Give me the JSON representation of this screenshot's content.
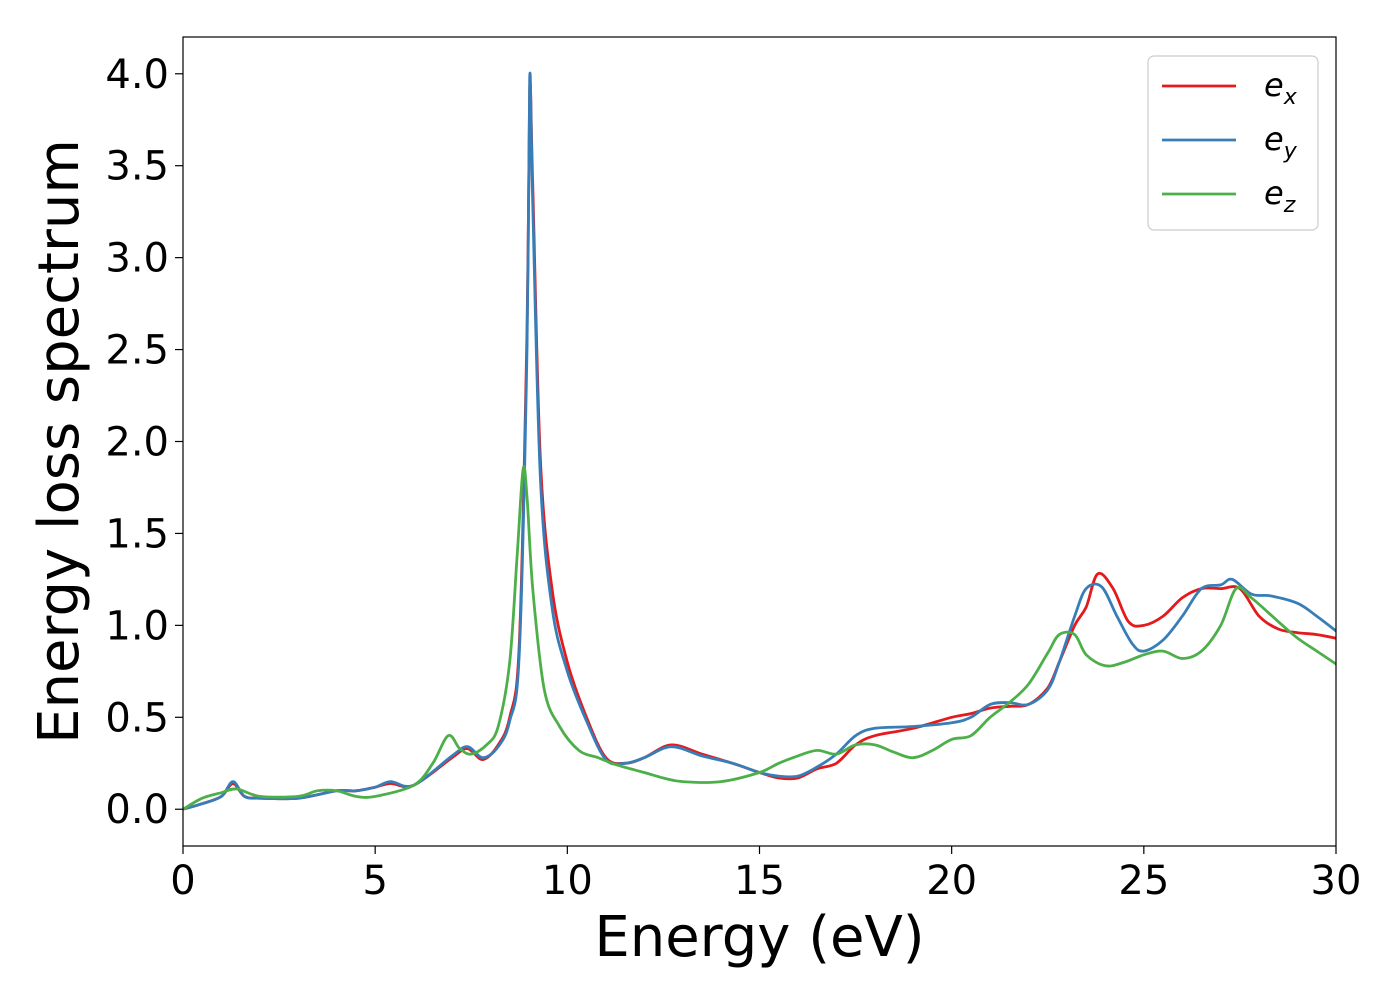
{
  "chart_data": {
    "type": "line",
    "title": "",
    "xlabel": "Energy (eV)",
    "ylabel": "Energy loss spectrum",
    "xlim": [
      0,
      30
    ],
    "ylim": [
      -0.2,
      4.2
    ],
    "xticks": [
      0,
      5,
      10,
      15,
      20,
      25,
      30
    ],
    "yticks": [
      0.0,
      0.5,
      1.0,
      1.5,
      2.0,
      2.5,
      3.0,
      3.5,
      4.0
    ],
    "grid": false,
    "legend_position": "top-right",
    "series": [
      {
        "name": "e_x",
        "label_main": "e",
        "label_sub": "x",
        "color": "#e41a1c",
        "x": [
          0,
          0.5,
          1.0,
          1.3,
          1.6,
          2.0,
          3.0,
          4.0,
          4.5,
          5.0,
          5.4,
          6.0,
          7.0,
          7.4,
          7.8,
          8.2,
          8.5,
          8.75,
          8.95,
          9.02,
          9.1,
          9.3,
          9.6,
          10.0,
          10.5,
          11.0,
          11.5,
          12.0,
          12.7,
          13.5,
          14.3,
          15.0,
          15.5,
          16.0,
          16.5,
          17.0,
          17.5,
          18.0,
          19.0,
          20.0,
          20.5,
          21.0,
          21.5,
          22.0,
          22.5,
          22.8,
          23.2,
          23.5,
          23.8,
          24.2,
          24.6,
          25.0,
          25.5,
          26.0,
          26.5,
          27.0,
          27.5,
          28.0,
          28.5,
          29.0,
          29.5,
          30.0
        ],
        "y": [
          0.0,
          0.03,
          0.07,
          0.14,
          0.07,
          0.06,
          0.06,
          0.1,
          0.1,
          0.12,
          0.14,
          0.13,
          0.28,
          0.33,
          0.27,
          0.35,
          0.5,
          0.9,
          2.6,
          3.92,
          3.4,
          1.9,
          1.2,
          0.8,
          0.5,
          0.28,
          0.25,
          0.28,
          0.35,
          0.3,
          0.25,
          0.2,
          0.17,
          0.17,
          0.22,
          0.25,
          0.35,
          0.4,
          0.44,
          0.5,
          0.52,
          0.55,
          0.56,
          0.57,
          0.66,
          0.8,
          1.0,
          1.1,
          1.28,
          1.2,
          1.02,
          1.0,
          1.05,
          1.15,
          1.2,
          1.2,
          1.2,
          1.05,
          0.98,
          0.96,
          0.95,
          0.93
        ]
      },
      {
        "name": "e_y",
        "label_main": "e",
        "label_sub": "y",
        "color": "#377eb8",
        "x": [
          0,
          0.5,
          1.0,
          1.3,
          1.6,
          2.0,
          3.0,
          4.0,
          4.5,
          5.0,
          5.4,
          6.0,
          7.0,
          7.4,
          7.8,
          8.2,
          8.5,
          8.75,
          8.95,
          9.02,
          9.1,
          9.3,
          9.6,
          10.0,
          10.5,
          11.0,
          11.5,
          12.0,
          12.7,
          13.5,
          14.3,
          15.0,
          15.5,
          16.0,
          16.5,
          17.0,
          17.5,
          18.0,
          19.0,
          20.0,
          20.5,
          21.0,
          21.5,
          22.0,
          22.5,
          22.8,
          23.2,
          23.5,
          23.9,
          24.3,
          24.7,
          25.0,
          25.5,
          26.0,
          26.5,
          27.0,
          27.3,
          27.8,
          28.3,
          29.0,
          29.5,
          30.0
        ],
        "y": [
          0.0,
          0.03,
          0.07,
          0.15,
          0.07,
          0.06,
          0.06,
          0.1,
          0.1,
          0.12,
          0.15,
          0.13,
          0.29,
          0.34,
          0.28,
          0.34,
          0.48,
          0.85,
          2.5,
          3.98,
          3.3,
          1.8,
          1.1,
          0.75,
          0.48,
          0.27,
          0.25,
          0.28,
          0.34,
          0.29,
          0.25,
          0.2,
          0.18,
          0.18,
          0.23,
          0.3,
          0.4,
          0.44,
          0.45,
          0.47,
          0.5,
          0.57,
          0.58,
          0.57,
          0.65,
          0.8,
          1.05,
          1.2,
          1.21,
          1.05,
          0.9,
          0.86,
          0.92,
          1.05,
          1.2,
          1.22,
          1.25,
          1.17,
          1.16,
          1.12,
          1.05,
          0.97
        ]
      },
      {
        "name": "e_z",
        "label_main": "e",
        "label_sub": "z",
        "color": "#4daf4a",
        "x": [
          0,
          0.5,
          1.0,
          1.4,
          2.0,
          3.0,
          3.5,
          4.0,
          4.5,
          5.0,
          6.0,
          6.5,
          6.9,
          7.2,
          7.5,
          7.9,
          8.2,
          8.5,
          8.7,
          8.85,
          8.95,
          9.1,
          9.4,
          9.8,
          10.3,
          10.8,
          11.3,
          12.0,
          12.5,
          13.0,
          14.0,
          15.0,
          15.5,
          16.0,
          16.5,
          17.0,
          17.5,
          18.0,
          18.5,
          19.0,
          19.5,
          20.0,
          20.5,
          21.0,
          21.5,
          22.0,
          22.5,
          22.8,
          23.2,
          23.5,
          24.0,
          24.5,
          25.0,
          25.5,
          26.0,
          26.5,
          27.0,
          27.4,
          27.8,
          28.5,
          29.0,
          29.5,
          30.0
        ],
        "y": [
          0.0,
          0.06,
          0.09,
          0.11,
          0.07,
          0.07,
          0.1,
          0.1,
          0.07,
          0.07,
          0.13,
          0.25,
          0.4,
          0.33,
          0.3,
          0.35,
          0.45,
          0.8,
          1.4,
          1.85,
          1.7,
          1.2,
          0.65,
          0.45,
          0.32,
          0.28,
          0.24,
          0.2,
          0.17,
          0.15,
          0.15,
          0.2,
          0.25,
          0.29,
          0.32,
          0.3,
          0.35,
          0.35,
          0.31,
          0.28,
          0.32,
          0.38,
          0.4,
          0.5,
          0.58,
          0.68,
          0.85,
          0.95,
          0.95,
          0.84,
          0.78,
          0.8,
          0.84,
          0.86,
          0.82,
          0.86,
          1.0,
          1.2,
          1.15,
          1.02,
          0.93,
          0.86,
          0.79
        ]
      }
    ]
  }
}
